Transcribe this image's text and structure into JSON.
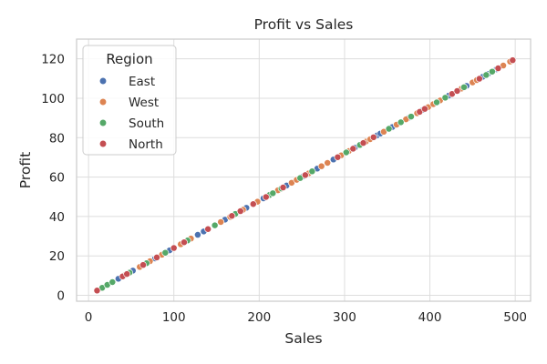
{
  "chart_data": {
    "type": "scatter",
    "title": "Profit vs Sales",
    "xlabel": "Sales",
    "ylabel": "Profit",
    "xlim": [
      -14,
      518
    ],
    "ylim": [
      -3,
      130
    ],
    "xticks": [
      0,
      100,
      200,
      300,
      400,
      500
    ],
    "yticks": [
      0,
      20,
      40,
      60,
      80,
      100,
      120
    ],
    "grid": true,
    "legend": {
      "title": "Region",
      "placement": "top-left",
      "entries": [
        {
          "name": "East",
          "color": "#4c72b0"
        },
        {
          "name": "West",
          "color": "#dd8452"
        },
        {
          "name": "South",
          "color": "#55a868"
        },
        {
          "name": "North",
          "color": "#c44e52"
        }
      ]
    },
    "series": [
      {
        "name": "East",
        "color": "#4c72b0",
        "points": [
          [
            35,
            8.4
          ],
          [
            52,
            12.5
          ],
          [
            78,
            18.7
          ],
          [
            95,
            22.8
          ],
          [
            128,
            30.7
          ],
          [
            135,
            32.4
          ],
          [
            160,
            38.4
          ],
          [
            185,
            44.4
          ],
          [
            205,
            49.2
          ],
          [
            232,
            55.7
          ],
          [
            252,
            60.5
          ],
          [
            268,
            64.3
          ],
          [
            287,
            68.9
          ],
          [
            312,
            74.9
          ],
          [
            338,
            81.1
          ],
          [
            342,
            82.1
          ],
          [
            356,
            85.4
          ],
          [
            374,
            89.8
          ],
          [
            392,
            94.1
          ],
          [
            422,
            101.3
          ],
          [
            443,
            106.3
          ],
          [
            462,
            110.9
          ],
          [
            468,
            112.3
          ],
          [
            478,
            114.7
          ]
        ]
      },
      {
        "name": "West",
        "color": "#dd8452",
        "points": [
          [
            42,
            10.1
          ],
          [
            60,
            14.4
          ],
          [
            72,
            17.3
          ],
          [
            86,
            20.6
          ],
          [
            108,
            25.9
          ],
          [
            120,
            28.8
          ],
          [
            155,
            37.2
          ],
          [
            166,
            39.8
          ],
          [
            181,
            43.4
          ],
          [
            198,
            47.5
          ],
          [
            222,
            53.3
          ],
          [
            238,
            57.1
          ],
          [
            244,
            58.6
          ],
          [
            258,
            61.9
          ],
          [
            273,
            65.5
          ],
          [
            280,
            67.2
          ],
          [
            296,
            71.0
          ],
          [
            305,
            73.2
          ],
          [
            325,
            78.0
          ],
          [
            330,
            79.2
          ],
          [
            346,
            83.0
          ],
          [
            361,
            86.6
          ],
          [
            372,
            89.3
          ],
          [
            385,
            92.4
          ],
          [
            398,
            95.5
          ],
          [
            404,
            97.0
          ],
          [
            412,
            98.9
          ],
          [
            437,
            104.9
          ],
          [
            450,
            108.0
          ],
          [
            455,
            109.2
          ],
          [
            486,
            116.6
          ],
          [
            494,
            118.6
          ]
        ]
      },
      {
        "name": "South",
        "color": "#55a868",
        "points": [
          [
            16,
            3.8
          ],
          [
            22,
            5.3
          ],
          [
            28,
            6.7
          ],
          [
            48,
            11.5
          ],
          [
            68,
            16.3
          ],
          [
            90,
            21.6
          ],
          [
            116,
            27.8
          ],
          [
            148,
            35.5
          ],
          [
            172,
            41.3
          ],
          [
            212,
            50.9
          ],
          [
            216,
            51.8
          ],
          [
            226,
            54.2
          ],
          [
            248,
            59.5
          ],
          [
            262,
            62.9
          ],
          [
            302,
            72.5
          ],
          [
            318,
            76.3
          ],
          [
            352,
            84.5
          ],
          [
            366,
            87.8
          ],
          [
            378,
            90.7
          ],
          [
            408,
            97.9
          ],
          [
            418,
            100.3
          ],
          [
            440,
            105.6
          ],
          [
            466,
            111.8
          ],
          [
            473,
            113.5
          ]
        ]
      },
      {
        "name": "North",
        "color": "#c44e52",
        "points": [
          [
            10,
            2.4
          ],
          [
            40,
            9.6
          ],
          [
            45,
            10.8
          ],
          [
            64,
            15.4
          ],
          [
            80,
            19.2
          ],
          [
            100,
            24.0
          ],
          [
            112,
            26.9
          ],
          [
            140,
            33.6
          ],
          [
            168,
            40.3
          ],
          [
            178,
            42.7
          ],
          [
            193,
            46.3
          ],
          [
            208,
            49.9
          ],
          [
            228,
            54.7
          ],
          [
            254,
            61.0
          ],
          [
            292,
            70.1
          ],
          [
            310,
            74.4
          ],
          [
            322,
            77.3
          ],
          [
            334,
            80.2
          ],
          [
            388,
            93.1
          ],
          [
            394,
            94.6
          ],
          [
            426,
            102.2
          ],
          [
            432,
            103.7
          ],
          [
            458,
            109.9
          ],
          [
            480,
            115.2
          ],
          [
            497,
            119.3
          ]
        ]
      }
    ]
  }
}
